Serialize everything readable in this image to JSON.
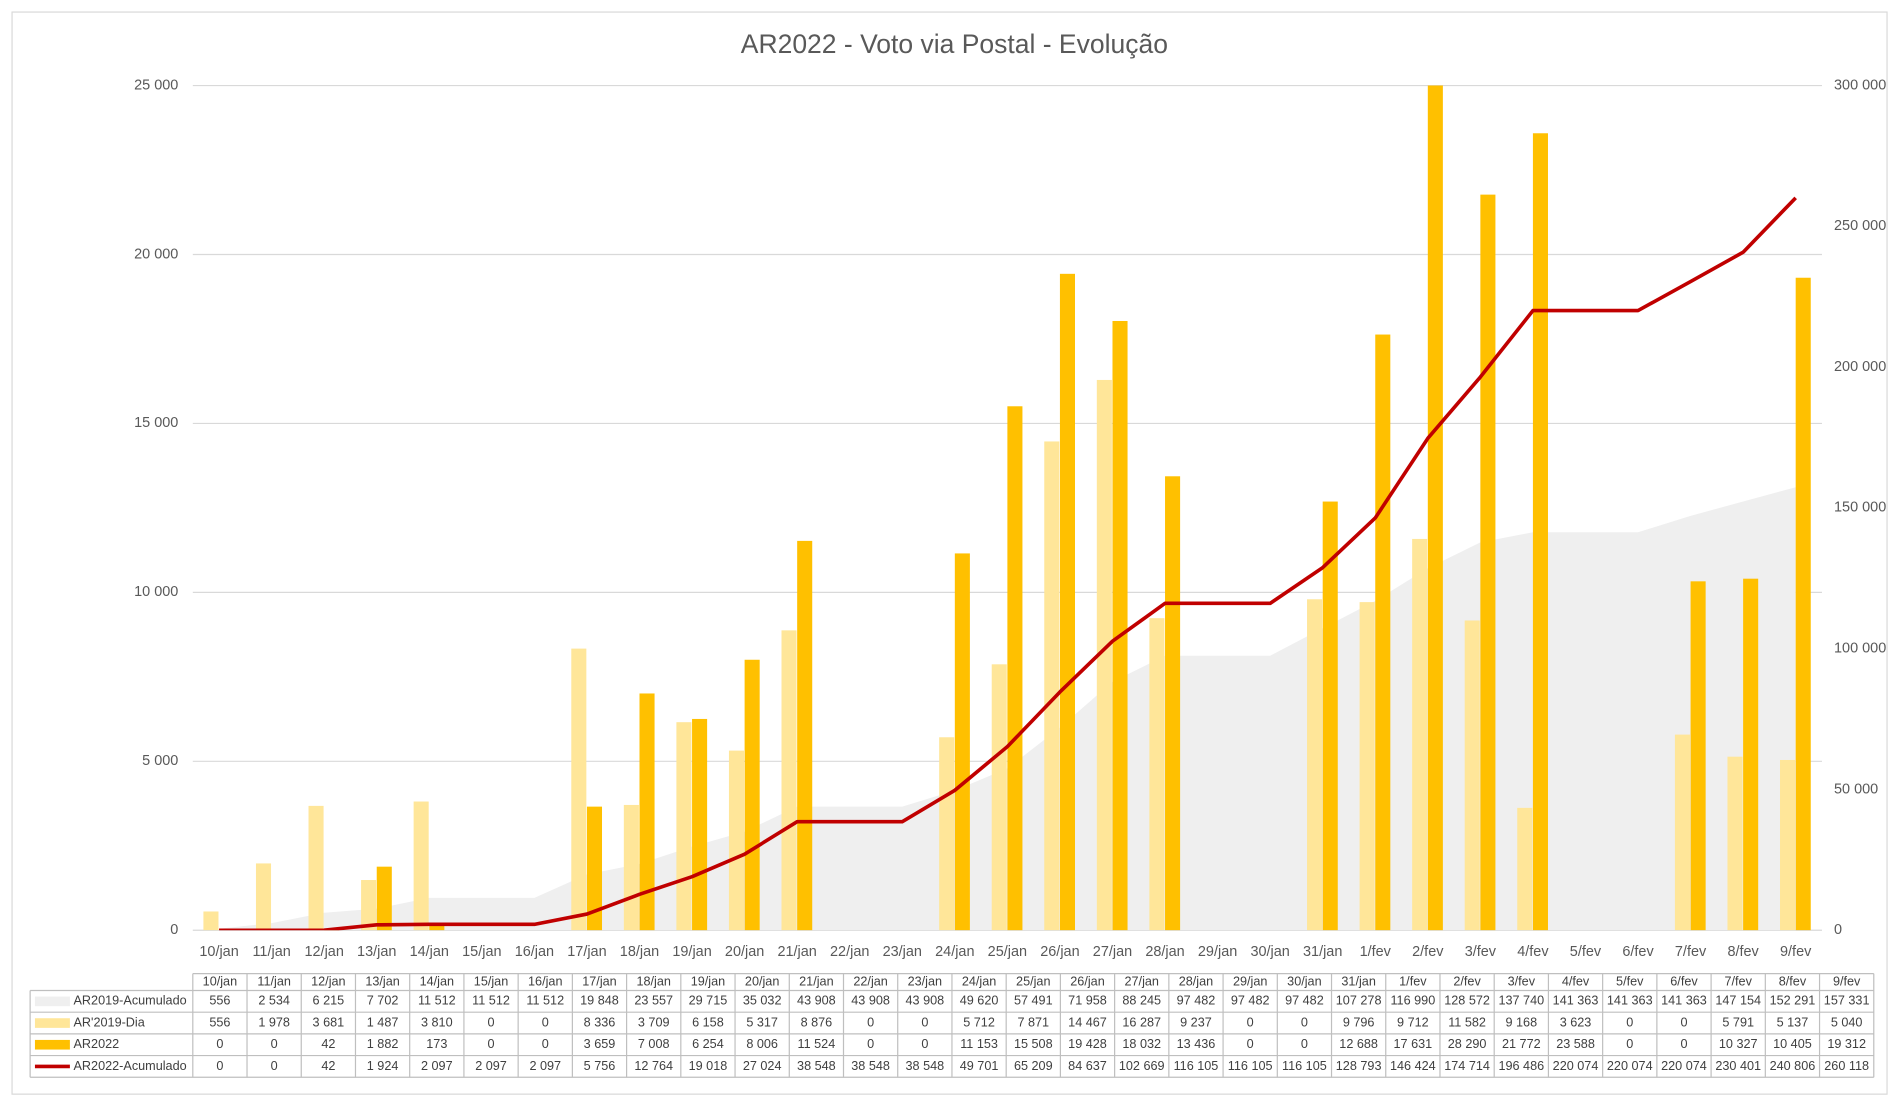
{
  "chart_data": {
    "type": "bar",
    "title": "AR2022 - Voto via Postal - Evolução",
    "categories": [
      "10/jan",
      "11/jan",
      "12/jan",
      "13/jan",
      "14/jan",
      "15/jan",
      "16/jan",
      "17/jan",
      "18/jan",
      "19/jan",
      "20/jan",
      "21/jan",
      "22/jan",
      "23/jan",
      "24/jan",
      "25/jan",
      "26/jan",
      "27/jan",
      "28/jan",
      "29/jan",
      "30/jan",
      "31/jan",
      "1/fev",
      "2/fev",
      "3/fev",
      "4/fev",
      "5/fev",
      "6/fev",
      "7/fev",
      "8/fev",
      "9/fev"
    ],
    "ylim": [
      0,
      25000
    ],
    "yticks": [
      0,
      {
        "value": 5000,
        "label": "5 000"
      },
      {
        "value": 10000,
        "label": "10 000"
      },
      {
        "value": 15000,
        "label": "15 000"
      },
      {
        "value": 20000,
        "label": "20 000"
      },
      {
        "value": 25000,
        "label": "25 000"
      }
    ],
    "y2lim": [
      0,
      300000
    ],
    "y2ticks": [
      0,
      {
        "value": 50000,
        "label": "50 000"
      },
      {
        "value": 100000,
        "label": "100 000"
      },
      {
        "value": 150000,
        "label": "150 000"
      },
      {
        "value": 200000,
        "label": "200 000"
      },
      {
        "value": 250000,
        "label": "250 000"
      },
      {
        "value": 300000,
        "label": "300 000"
      }
    ],
    "grid": true,
    "series": [
      {
        "name": "AR2019-Acumulado",
        "type": "area",
        "axis": "y2",
        "color": "#efefef",
        "values": [
          556,
          2534,
          6215,
          7702,
          11512,
          11512,
          11512,
          19848,
          23557,
          29715,
          35032,
          43908,
          43908,
          43908,
          49620,
          57491,
          71958,
          88245,
          97482,
          97482,
          97482,
          107278,
          116990,
          128572,
          137740,
          141363,
          141363,
          141363,
          147154,
          152291,
          157331
        ],
        "value_labels": [
          "556",
          "2 534",
          "6 215",
          "7 702",
          "11 512",
          "11 512",
          "11 512",
          "19 848",
          "23 557",
          "29 715",
          "35 032",
          "43 908",
          "43 908",
          "43 908",
          "49 620",
          "57 491",
          "71 958",
          "88 245",
          "97 482",
          "97 482",
          "97 482",
          "107 278",
          "116 990",
          "128 572",
          "137 740",
          "141 363",
          "141 363",
          "141 363",
          "147 154",
          "152 291",
          "157 331"
        ]
      },
      {
        "name": "AR'2019-Dia",
        "type": "bar",
        "color": "#ffe699",
        "values": [
          556,
          1978,
          3681,
          1487,
          3810,
          0,
          0,
          8336,
          3709,
          6158,
          5317,
          8876,
          0,
          0,
          5712,
          7871,
          14467,
          16287,
          9237,
          0,
          0,
          9796,
          9712,
          11582,
          9168,
          3623,
          0,
          0,
          5791,
          5137,
          5040
        ],
        "value_labels": [
          "556",
          "1 978",
          "3 681",
          "1 487",
          "3 810",
          "0",
          "0",
          "8 336",
          "3 709",
          "6 158",
          "5 317",
          "8 876",
          "0",
          "0",
          "5 712",
          "7 871",
          "14 467",
          "16 287",
          "9 237",
          "0",
          "0",
          "9 796",
          "9 712",
          "11 582",
          "9 168",
          "3 623",
          "0",
          "0",
          "5 791",
          "5 137",
          "5 040"
        ]
      },
      {
        "name": "AR2022",
        "type": "bar",
        "color": "#ffc000",
        "values": [
          0,
          0,
          42,
          1882,
          173,
          0,
          0,
          3659,
          7008,
          6254,
          8006,
          11524,
          0,
          0,
          11153,
          15508,
          19428,
          18032,
          13436,
          0,
          0,
          12688,
          17631,
          28290,
          21772,
          23588,
          0,
          0,
          10327,
          10405,
          19312
        ],
        "value_labels": [
          "0",
          "0",
          "42",
          "1 882",
          "173",
          "0",
          "0",
          "3 659",
          "7 008",
          "6 254",
          "8 006",
          "11 524",
          "0",
          "0",
          "11 153",
          "15 508",
          "19 428",
          "18 032",
          "13 436",
          "0",
          "0",
          "12 688",
          "17 631",
          "28 290",
          "21 772",
          "23 588",
          "0",
          "0",
          "10 327",
          "10 405",
          "19 312"
        ]
      },
      {
        "name": "AR2022-Acumulado",
        "type": "line",
        "axis": "y2",
        "color": "#c00000",
        "values": [
          0,
          0,
          42,
          1924,
          2097,
          2097,
          2097,
          5756,
          12764,
          19018,
          27024,
          38548,
          38548,
          38548,
          49701,
          65209,
          84637,
          102669,
          116105,
          116105,
          116105,
          128793,
          146424,
          174714,
          196486,
          220074,
          220074,
          220074,
          230401,
          240806,
          260118
        ],
        "value_labels": [
          "0",
          "0",
          "42",
          "1 924",
          "2 097",
          "2 097",
          "2 097",
          "5 756",
          "12 764",
          "19 018",
          "27 024",
          "38 548",
          "38 548",
          "38 548",
          "49 701",
          "65 209",
          "84 637",
          "102 669",
          "116 105",
          "116 105",
          "116 105",
          "128 793",
          "146 424",
          "174 714",
          "196 486",
          "220 074",
          "220 074",
          "220 074",
          "230 401",
          "240 806",
          "260 118"
        ]
      }
    ]
  }
}
